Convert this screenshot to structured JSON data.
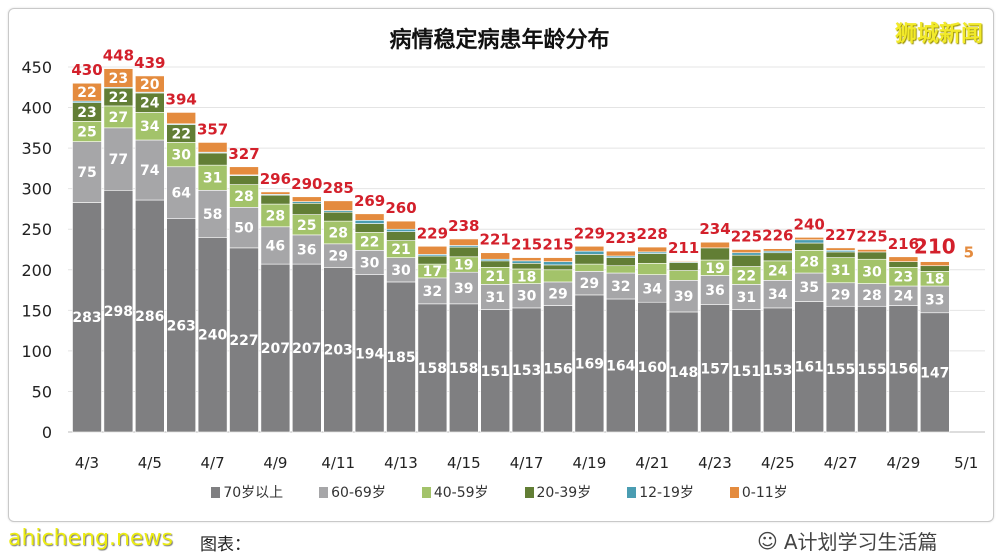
{
  "chart_data": {
    "type": "bar",
    "stacked": true,
    "title": "病情稳定病患年龄分布",
    "ylim": [
      0,
      450
    ],
    "yticks": [
      0,
      50,
      100,
      150,
      200,
      250,
      300,
      350,
      400,
      450
    ],
    "grid": true,
    "legend_position": "bottom",
    "categories": [
      "4/3",
      "4/4",
      "4/5",
      "4/6",
      "4/7",
      "4/8",
      "4/9",
      "4/10",
      "4/11",
      "4/12",
      "4/13",
      "4/14",
      "4/15",
      "4/16",
      "4/17",
      "4/18",
      "4/19",
      "4/20",
      "4/21",
      "4/22",
      "4/23",
      "4/24",
      "4/25",
      "4/26",
      "4/27",
      "4/28",
      "4/29",
      "4/30",
      "5/1"
    ],
    "xtick_labels": [
      "4/3",
      "4/5",
      "4/7",
      "4/9",
      "4/11",
      "4/13",
      "4/15",
      "4/17",
      "4/19",
      "4/21",
      "4/23",
      "4/25",
      "4/27",
      "4/29",
      "5/1"
    ],
    "series": [
      {
        "name": "70岁以上",
        "color": "#7f7f81",
        "values": [
          283,
          298,
          286,
          263,
          240,
          227,
          207,
          207,
          203,
          194,
          185,
          158,
          158,
          151,
          153,
          156,
          169,
          164,
          160,
          148,
          157,
          151,
          153,
          161,
          155,
          155,
          156,
          147,
          null
        ]
      },
      {
        "name": "60-69岁",
        "color": "#a6a6a8",
        "values": [
          75,
          77,
          74,
          64,
          58,
          50,
          46,
          36,
          29,
          30,
          30,
          32,
          39,
          31,
          30,
          29,
          29,
          32,
          34,
          39,
          36,
          31,
          34,
          35,
          29,
          28,
          24,
          33,
          null
        ]
      },
      {
        "name": "40-59岁",
        "color": "#a3c36a",
        "values": [
          25,
          27,
          34,
          30,
          31,
          28,
          28,
          25,
          28,
          22,
          21,
          17,
          19,
          21,
          18,
          15,
          9,
          9,
          14,
          12,
          19,
          22,
          24,
          28,
          31,
          30,
          23,
          18,
          null
        ]
      },
      {
        "name": "20-39岁",
        "color": "#627e35",
        "values": [
          23,
          22,
          24,
          22,
          15,
          11,
          11,
          14,
          11,
          11,
          11,
          10,
          12,
          8,
          7,
          6,
          12,
          10,
          12,
          10,
          15,
          14,
          10,
          9,
          7,
          9,
          7,
          7,
          null
        ]
      },
      {
        "name": "12-19岁",
        "color": "#4a9db2",
        "values": [
          2,
          1,
          1,
          1,
          1,
          1,
          1,
          2,
          2,
          4,
          3,
          2,
          2,
          2,
          3,
          4,
          4,
          2,
          2,
          1,
          0,
          3,
          2,
          4,
          2,
          0,
          0,
          0,
          null
        ]
      },
      {
        "name": "0-11岁",
        "color": "#e48b3e",
        "values": [
          22,
          23,
          20,
          14,
          12,
          10,
          3,
          6,
          12,
          8,
          10,
          10,
          8,
          8,
          4,
          5,
          6,
          6,
          6,
          1,
          7,
          4,
          3,
          3,
          3,
          3,
          6,
          5,
          null
        ]
      }
    ],
    "totals": [
      430,
      448,
      439,
      394,
      357,
      327,
      296,
      290,
      285,
      269,
      260,
      229,
      238,
      221,
      215,
      215,
      229,
      223,
      228,
      211,
      234,
      225,
      226,
      240,
      227,
      225,
      216,
      210,
      null
    ],
    "total_color": "#d3202b",
    "annotation": "5"
  },
  "watermark": "狮城新闻",
  "footer": {
    "caption": "图表：",
    "site": "ahicheng.news",
    "account": "A计划学习生活篇"
  }
}
